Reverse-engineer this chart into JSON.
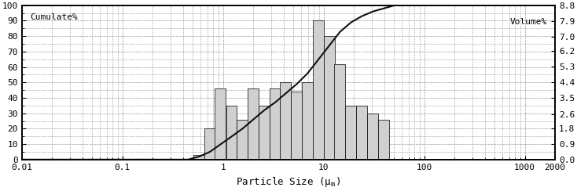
{
  "left_label": "Cumulate%",
  "right_label": "Volume%",
  "xlabel": "Particle Size (μm)",
  "xlim_log": [
    0.01,
    2000
  ],
  "left_ylim": [
    0,
    100
  ],
  "right_ylim": [
    0.0,
    8.8
  ],
  "left_yticks": [
    0,
    10,
    20,
    30,
    40,
    50,
    60,
    70,
    80,
    90,
    100
  ],
  "right_yticks": [
    0.0,
    0.9,
    1.8,
    2.6,
    3.5,
    4.4,
    5.3,
    6.2,
    7.0,
    7.9,
    8.8
  ],
  "bar_centers": [
    0.58,
    0.74,
    0.95,
    1.22,
    1.56,
    2.0,
    2.57,
    3.29,
    4.22,
    5.41,
    6.94,
    8.9,
    11.41,
    14.63,
    18.77,
    24.07,
    30.88,
    39.6,
    50.79
  ],
  "bar_heights_left": [
    3,
    20,
    46,
    35,
    26,
    46,
    35,
    46,
    50,
    44,
    50,
    90,
    80,
    62,
    35,
    35,
    30,
    26,
    0
  ],
  "cumulate_x": [
    0.01,
    0.45,
    0.58,
    0.74,
    0.95,
    1.22,
    1.56,
    2.0,
    2.57,
    3.29,
    4.22,
    5.41,
    6.94,
    8.9,
    11.41,
    14.63,
    18.77,
    24.07,
    30.88,
    39.6,
    50.79,
    80,
    300,
    2000
  ],
  "cumulate_y": [
    0,
    0,
    2,
    5,
    10,
    15,
    20,
    26,
    32,
    37,
    43,
    49,
    56,
    65,
    74,
    83,
    89,
    93,
    96,
    98,
    100,
    100,
    100,
    100
  ],
  "bar_color": "#d0d0d0",
  "bar_edge_color": "#000000",
  "line_color": "#111111",
  "background_color": "#ffffff",
  "grid_color": "#999999",
  "font_family": "monospace",
  "font_size": 8,
  "tick_font_size": 8
}
